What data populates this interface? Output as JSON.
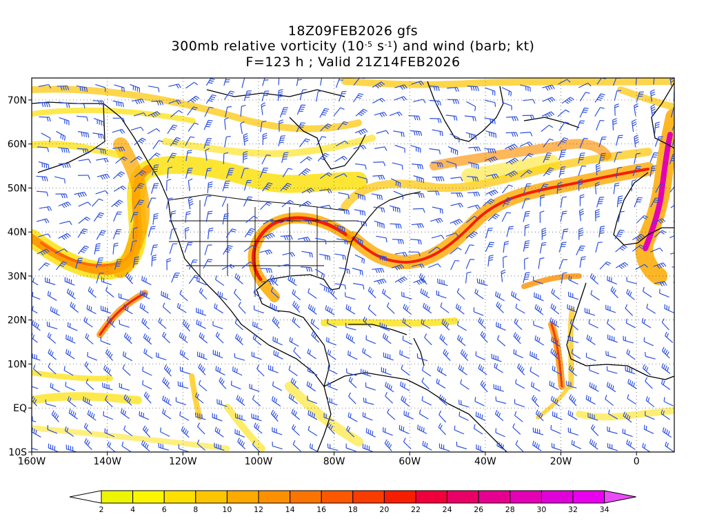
{
  "title": {
    "line1": "18Z09FEB2026 gfs",
    "line2_pre": "300mb relative vorticity (10",
    "line2_exp1": "-5",
    "line2_mid": " s",
    "line2_exp2": "-1",
    "line2_post": ") and wind (barb; kt)",
    "line3": "F=123 h ; Valid 21Z14FEB2026"
  },
  "map": {
    "lon_range": [
      -160,
      10
    ],
    "lat_range": [
      -10,
      75
    ],
    "lon_labels": [
      "160W",
      "140W",
      "120W",
      "100W",
      "80W",
      "60W",
      "40W",
      "20W",
      "0"
    ],
    "lon_values": [
      -160,
      -140,
      -120,
      -100,
      -80,
      -60,
      -40,
      -20,
      0
    ],
    "lat_labels": [
      "70N",
      "60N",
      "50N",
      "40N",
      "30N",
      "20N",
      "10N",
      "EQ",
      "10S"
    ],
    "lat_values": [
      70,
      60,
      50,
      40,
      30,
      20,
      10,
      0,
      -10
    ],
    "barb_color": "#2b4fe0",
    "coast_color": "#000000"
  },
  "colorbar": {
    "labels": [
      "2",
      "4",
      "6",
      "8",
      "10",
      "12",
      "14",
      "16",
      "18",
      "20",
      "22",
      "24",
      "26",
      "28",
      "30",
      "32",
      "34"
    ],
    "colors": [
      "#eef500",
      "#fbf600",
      "#fde000",
      "#fdc500",
      "#fdaa00",
      "#fd9000",
      "#fc7400",
      "#fb5800",
      "#f93c00",
      "#f61e00",
      "#f0003a",
      "#e90066",
      "#e60090",
      "#e300b5",
      "#e000d8",
      "#e900ef"
    ],
    "under_color": "#ffffff",
    "over_color": "#e94cf5"
  }
}
